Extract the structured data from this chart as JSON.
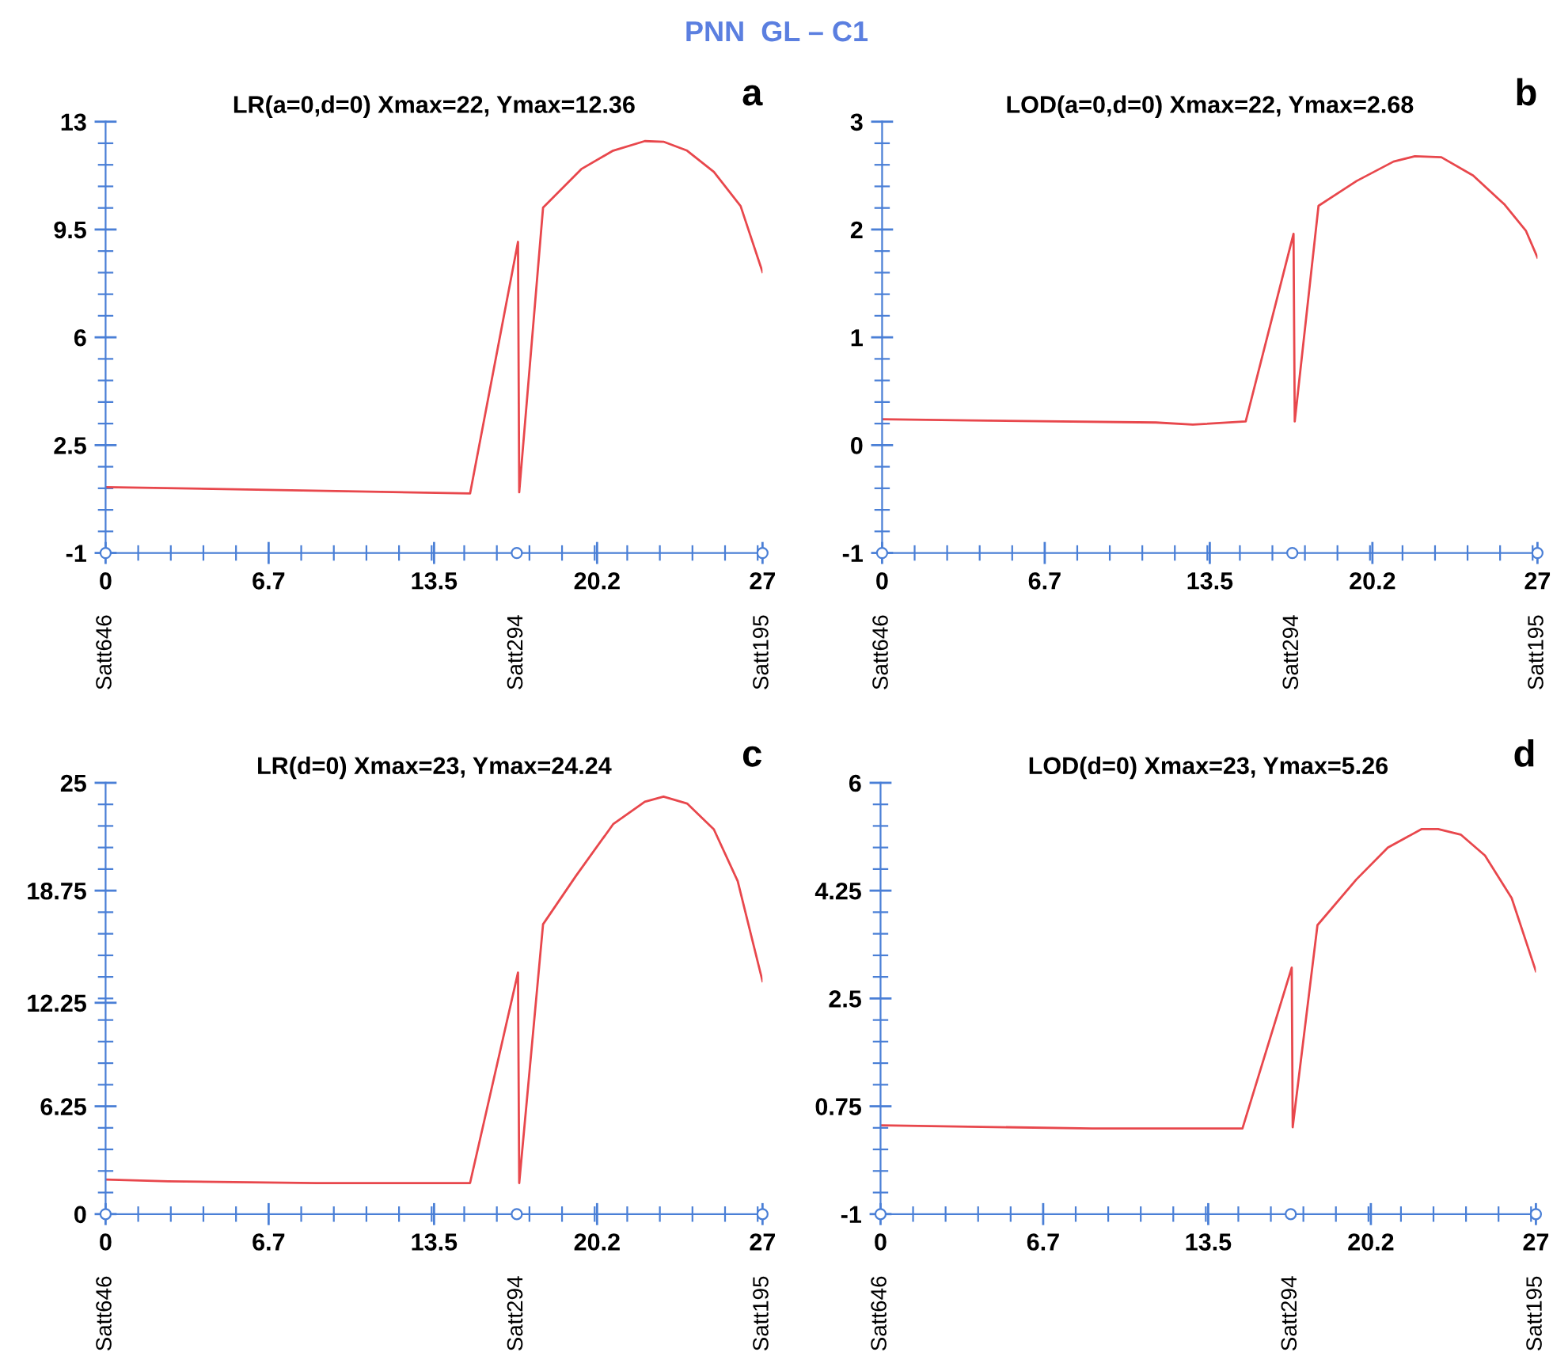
{
  "chart_data": [
    {
      "type": "line",
      "title": "LR(a=0,d=0) Xmax=22, Ymax=12.36",
      "annotations": [
        "PNN  GL – C1",
        "a"
      ],
      "series": [
        {
          "type": "scatter",
          "marker": "circle",
          "color": "#4a7fd6",
          "x": [
            0,
            16.9,
            27
          ],
          "values": [
            -1,
            -1,
            -1
          ],
          "value_labels": [
            "Satt646",
            "Satt294",
            "Satt195"
          ]
        },
        {
          "color": "#e8474c",
          "x": [
            0,
            14.98,
            16.95,
            17.0,
            17.98,
            19.55,
            20.86,
            22.16,
            22.93,
            23.9,
            25.0,
            26.1,
            27
          ],
          "values": [
            1.14,
            0.93,
            9.1,
            0.97,
            10.21,
            11.46,
            12.06,
            12.37,
            12.35,
            12.06,
            11.37,
            10.26,
            8.12
          ]
        }
      ],
      "xlim": [
        0,
        27
      ],
      "xticks": [
        0,
        6.7,
        13.5,
        20.2,
        27
      ],
      "ylim": [
        -1,
        13
      ],
      "yticks": [
        -1,
        2.5,
        6,
        9.5,
        13
      ],
      "grid": false,
      "legend": false,
      "marker": "none",
      "line_style": "solid"
    },
    {
      "type": "line",
      "title": "LOD(a=0,d=0) Xmax=22, Ymax=2.68",
      "annotations": [
        "b"
      ],
      "series": [
        {
          "type": "scatter",
          "marker": "circle",
          "color": "#4a7fd6",
          "x": [
            0,
            16.9,
            27
          ],
          "values": [
            -1,
            -1,
            -1
          ],
          "value_labels": [
            "Satt646",
            "Satt294",
            "Satt195"
          ]
        },
        {
          "color": "#e8474c",
          "x": [
            0,
            3.66,
            11.28,
            12.8,
            14.98,
            16.95,
            17.0,
            17.98,
            19.55,
            21.07,
            21.95,
            23.04,
            24.35,
            25.65,
            26.52,
            27
          ],
          "values": [
            0.24,
            0.23,
            0.21,
            0.19,
            0.22,
            1.96,
            0.22,
            2.22,
            2.45,
            2.63,
            2.68,
            2.67,
            2.5,
            2.23,
            1.99,
            1.74
          ]
        }
      ],
      "xlim": [
        0,
        27
      ],
      "xticks": [
        0,
        6.7,
        13.5,
        20.2,
        27
      ],
      "ylim": [
        -1,
        3
      ],
      "yticks": [
        -1,
        0,
        1,
        2,
        3
      ],
      "grid": false,
      "legend": false,
      "marker": "none",
      "line_style": "solid"
    },
    {
      "type": "line",
      "title": "LR(d=0) Xmax=23, Ymax=24.24",
      "annotations": [
        "c"
      ],
      "series": [
        {
          "type": "scatter",
          "marker": "circle",
          "color": "#4a7fd6",
          "x": [
            0,
            16.9,
            27
          ],
          "values": [
            0,
            0,
            0
          ],
          "value_labels": [
            "Satt646",
            "Satt294",
            "Satt195"
          ]
        },
        {
          "color": "#e8474c",
          "x": [
            0,
            2.57,
            8.67,
            14.98,
            16.95,
            17.0,
            17.98,
            19.33,
            20.86,
            22.16,
            22.93,
            23.9,
            25.0,
            25.98,
            27
          ],
          "values": [
            2.0,
            1.9,
            1.8,
            1.8,
            14.0,
            1.8,
            16.8,
            19.6,
            22.6,
            23.9,
            24.2,
            23.8,
            22.3,
            19.3,
            13.5
          ]
        }
      ],
      "xlim": [
        0,
        27
      ],
      "xticks": [
        0,
        6.7,
        13.5,
        20.2,
        27
      ],
      "ylim": [
        0,
        25
      ],
      "yticks": [
        0,
        6.25,
        12.25,
        18.75,
        25
      ],
      "grid": false,
      "legend": false,
      "marker": "none",
      "line_style": "solid"
    },
    {
      "type": "line",
      "title": "LOD(d=0) Xmax=23, Ymax=5.26",
      "annotations": [
        "d"
      ],
      "series": [
        {
          "type": "scatter",
          "marker": "circle",
          "color": "#4a7fd6",
          "x": [
            0,
            16.9,
            27
          ],
          "values": [
            -1,
            -1,
            -1
          ],
          "value_labels": [
            "Satt646",
            "Satt294",
            "Satt195"
          ]
        },
        {
          "color": "#e8474c",
          "x": [
            0,
            8.71,
            14.91,
            16.94,
            16.98,
            18.0,
            19.6,
            20.9,
            22.3,
            22.97,
            23.9,
            24.9,
            26.0,
            27
          ],
          "values": [
            0.44,
            0.39,
            0.39,
            3.0,
            0.41,
            3.69,
            4.43,
            4.95,
            5.25,
            5.25,
            5.16,
            4.82,
            4.13,
            2.94
          ]
        }
      ],
      "xlim": [
        0,
        27
      ],
      "xticks": [
        0,
        6.7,
        13.5,
        20.2,
        27
      ],
      "ylim": [
        -1,
        6
      ],
      "yticks": [
        -1,
        0.75,
        2.5,
        4.25,
        6
      ],
      "grid": false,
      "legend": false,
      "marker": "none",
      "line_style": "solid"
    }
  ]
}
